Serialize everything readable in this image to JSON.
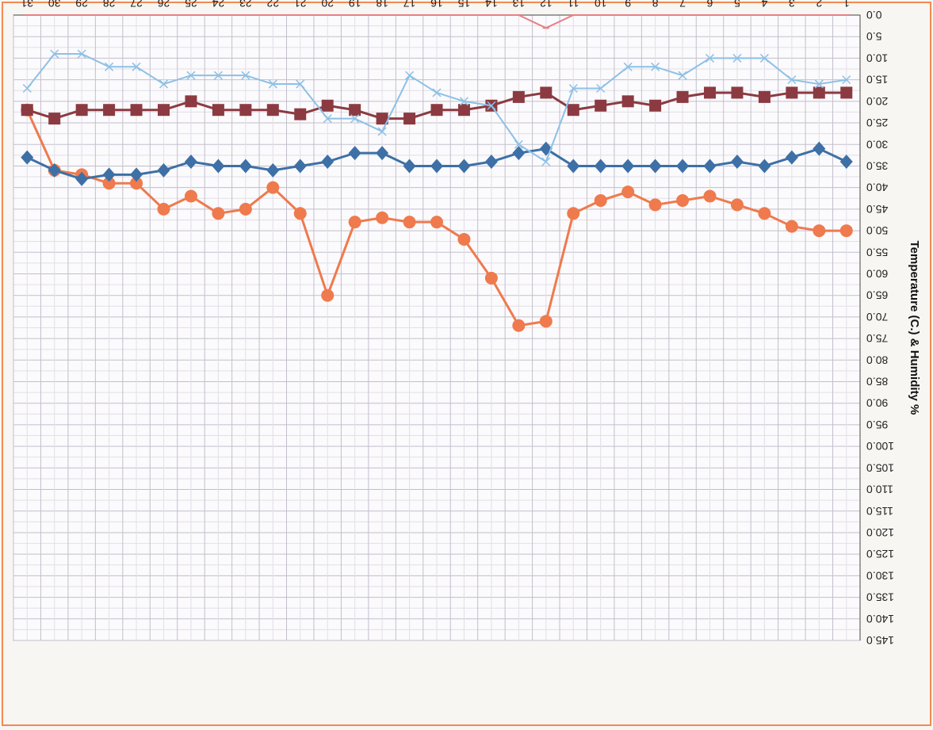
{
  "chart_data": {
    "type": "line",
    "title": "",
    "ylabel": "Temperature (C.) & Humidity %",
    "xlabel": "",
    "ylim": [
      0,
      145
    ],
    "y_ticks": [
      0,
      5,
      10,
      15,
      20,
      25,
      30,
      35,
      40,
      45,
      50,
      55,
      60,
      65,
      70,
      75,
      80,
      85,
      90,
      95,
      100,
      105,
      110,
      115,
      120,
      125,
      130,
      135,
      140,
      145
    ],
    "y_tick_labels": [
      "0.0",
      "5.0",
      "10.0",
      "15.0",
      "20.0",
      "25.0",
      "30.0",
      "35.0",
      "40.0",
      "45.0",
      "50.0",
      "55.0",
      "60.0",
      "65.0",
      "70.0",
      "75.0",
      "80.0",
      "85.0",
      "90.0",
      "95.0",
      "100.0",
      "105.0",
      "110.0",
      "115.0",
      "120.0",
      "125.0",
      "130.0",
      "135.0",
      "140.0",
      "145.0"
    ],
    "categories": [
      "1",
      "2",
      "3",
      "4",
      "5",
      "6",
      "7",
      "8",
      "9",
      "10",
      "11",
      "12",
      "13",
      "14",
      "15",
      "16",
      "17",
      "18",
      "19",
      "20",
      "21",
      "22",
      "23",
      "24",
      "25",
      "26",
      "27",
      "28",
      "29",
      "30",
      "31"
    ],
    "grid": true,
    "orientation": "rotated-180",
    "series": [
      {
        "color": "#ef7a4d",
        "marker": "circle",
        "values": [
          50,
          50,
          49,
          46,
          44,
          42,
          43,
          44,
          41,
          43,
          46,
          71,
          72,
          61,
          52,
          48,
          48,
          47,
          48,
          65,
          46,
          40,
          45,
          46,
          42,
          45,
          39,
          39,
          37,
          36,
          22
        ]
      },
      {
        "color": "#3d70a6",
        "marker": "diamond",
        "values": [
          34,
          31,
          33,
          35,
          34,
          35,
          35,
          35,
          35,
          35,
          35,
          31,
          32,
          34,
          35,
          35,
          35,
          32,
          32,
          34,
          35,
          36,
          35,
          35,
          34,
          36,
          37,
          37,
          38,
          36,
          33
        ]
      },
      {
        "color": "#8c3a41",
        "marker": "square",
        "values": [
          18,
          18,
          18,
          19,
          18,
          18,
          19,
          21,
          20,
          21,
          22,
          18,
          19,
          21,
          22,
          22,
          24,
          24,
          22,
          21,
          23,
          22,
          22,
          22,
          20,
          22,
          22,
          22,
          22,
          24,
          22
        ]
      },
      {
        "color": "#8cc1e6",
        "marker": "cross",
        "values": [
          15,
          16,
          15,
          10,
          10,
          10,
          14,
          12,
          12,
          17,
          17,
          34,
          30,
          21,
          20,
          18,
          14,
          27,
          24,
          24,
          16,
          16,
          14,
          14,
          14,
          16,
          12,
          12,
          9,
          9,
          17
        ]
      },
      {
        "color": "#e87f86",
        "marker": "dash",
        "values": [
          0,
          0,
          0,
          0,
          0,
          0,
          0,
          0,
          0,
          0,
          0,
          3,
          0,
          0,
          0,
          0,
          0,
          0,
          0,
          0,
          0,
          0,
          0,
          0,
          0,
          0,
          0,
          0,
          0,
          0,
          0
        ]
      }
    ]
  }
}
